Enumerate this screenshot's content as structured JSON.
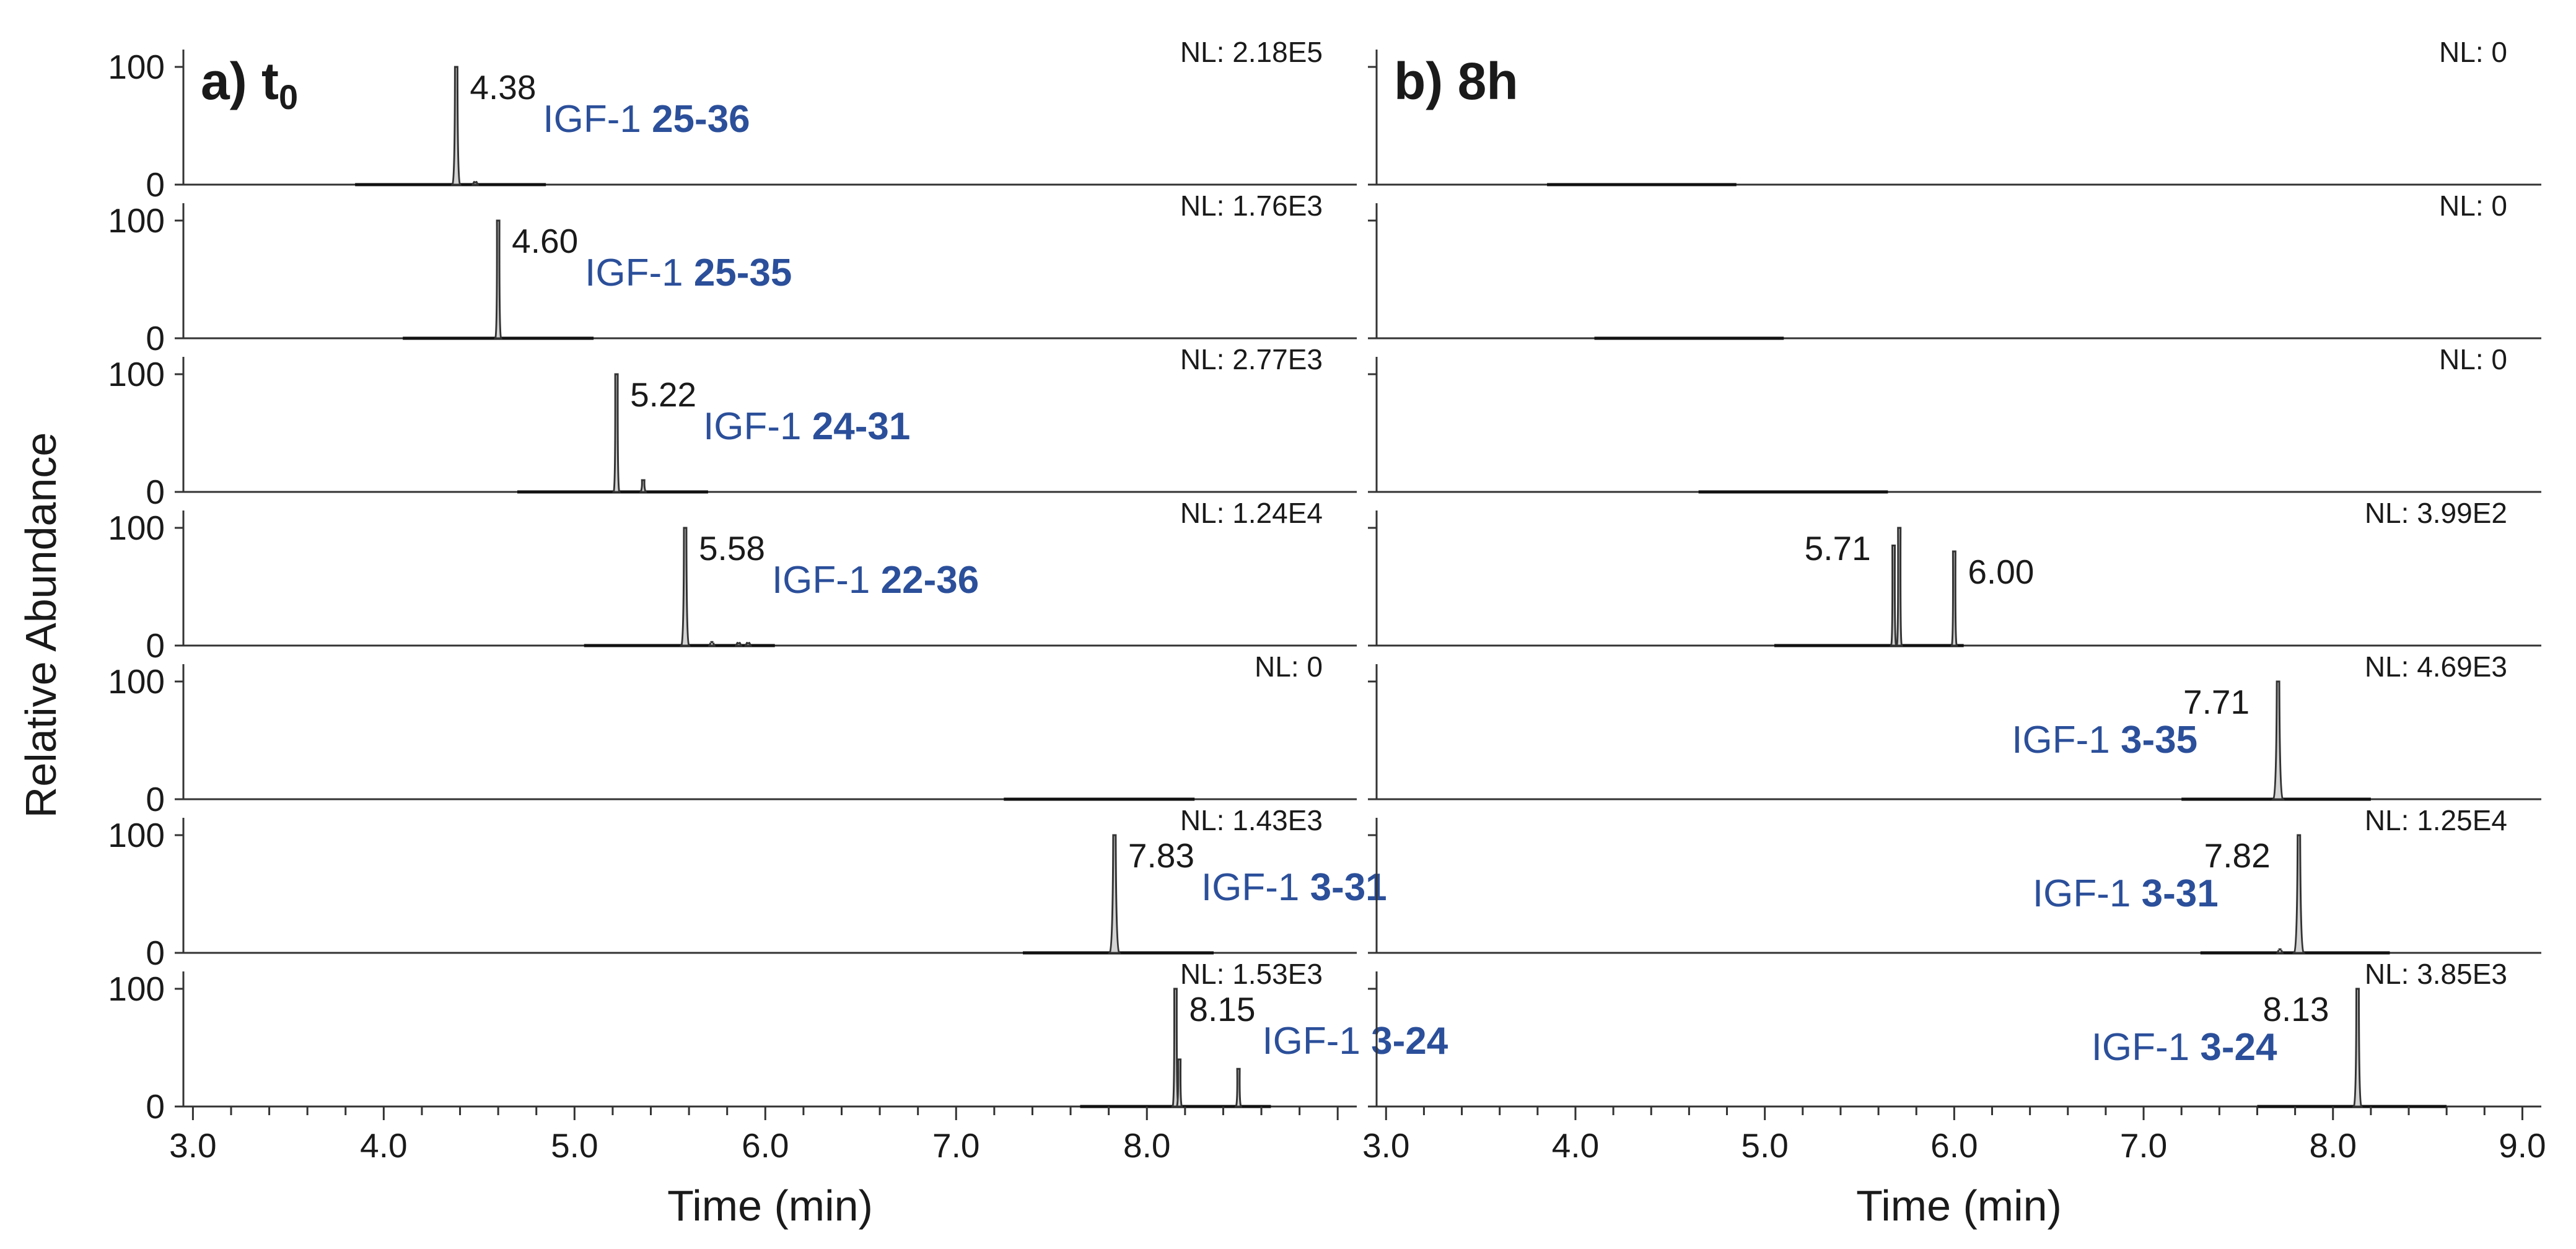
{
  "colors": {
    "text": "#1a1a1a",
    "label": "#2b4f9a",
    "axis": "#333333",
    "peak_fill": "#d4d4d4",
    "peak_stroke": "#333333"
  },
  "y_axis_label": "Relative Abundance",
  "chart_data": [
    {
      "type": "line",
      "panel_label": "a) t",
      "panel_label_subscript": "0",
      "xlabel": "Time (min)",
      "xlim": [
        2.95,
        9.1
      ],
      "x_ticks": [
        "3.0",
        "4.0",
        "5.0",
        "6.0",
        "7.0",
        "8.0"
      ],
      "ylim": [
        0,
        100
      ],
      "y_ticks": [
        "0",
        "100"
      ],
      "traces": [
        {
          "nl": "NL: 2.18E5",
          "window": [
            3.85,
            4.85
          ],
          "label_prefix": "IGF-1",
          "label_bold": "25-36",
          "peaks": [
            {
              "rt": 4.38,
              "height": 100,
              "label": "4.38",
              "width": 0.04
            },
            {
              "rt": 4.48,
              "height": 2,
              "width": 0.02
            }
          ]
        },
        {
          "nl": "NL: 1.76E3",
          "window": [
            4.1,
            5.1
          ],
          "label_prefix": "IGF-1",
          "label_bold": "25-35",
          "peaks": [
            {
              "rt": 4.6,
              "height": 100,
              "label": "4.60",
              "width": 0.03
            }
          ]
        },
        {
          "nl": "NL: 2.77E3",
          "window": [
            4.7,
            5.7
          ],
          "label_prefix": "IGF-1",
          "label_bold": "24-31",
          "peaks": [
            {
              "rt": 5.22,
              "height": 100,
              "label": "5.22",
              "width": 0.03
            },
            {
              "rt": 5.36,
              "height": 10,
              "width": 0.015
            }
          ]
        },
        {
          "nl": "NL: 1.24E4",
          "window": [
            5.05,
            6.05
          ],
          "label_prefix": "IGF-1",
          "label_bold": "22-36",
          "peaks": [
            {
              "rt": 5.58,
              "height": 100,
              "label": "5.58",
              "width": 0.04
            },
            {
              "rt": 5.72,
              "height": 3,
              "width": 0.015
            },
            {
              "rt": 5.86,
              "height": 2,
              "width": 0.015
            },
            {
              "rt": 5.91,
              "height": 2,
              "width": 0.015
            }
          ]
        },
        {
          "nl": "NL: 0",
          "window": [
            7.25,
            8.25
          ],
          "label_prefix": "",
          "label_bold": "",
          "peaks": []
        },
        {
          "nl": "NL: 1.43E3",
          "window": [
            7.35,
            8.35
          ],
          "label_prefix": "IGF-1",
          "label_bold": "3-31",
          "peaks": [
            {
              "rt": 7.83,
              "height": 100,
              "label": "7.83",
              "width": 0.05
            }
          ]
        },
        {
          "nl": "NL: 1.53E3",
          "window": [
            7.65,
            8.65
          ],
          "label_prefix": "IGF-1",
          "label_bold": "3-24",
          "peaks": [
            {
              "rt": 8.15,
              "height": 100,
              "label": "8.15",
              "width": 0.03
            },
            {
              "rt": 8.17,
              "height": 40,
              "width": 0.02
            },
            {
              "rt": 8.48,
              "height": 32,
              "width": 0.015
            }
          ]
        }
      ]
    },
    {
      "type": "line",
      "panel_label": "b) 8h",
      "panel_label_subscript": "",
      "xlabel": "Time (min)",
      "xlim": [
        2.95,
        9.1
      ],
      "x_ticks": [
        "3.0",
        "4.0",
        "5.0",
        "6.0",
        "7.0",
        "8.0",
        "9.0"
      ],
      "ylim": [
        0,
        100
      ],
      "y_ticks": [],
      "traces": [
        {
          "nl": "NL: 0",
          "window": [
            3.85,
            4.85
          ],
          "label_prefix": "",
          "label_bold": "",
          "peaks": []
        },
        {
          "nl": "NL: 0",
          "window": [
            4.1,
            5.1
          ],
          "label_prefix": "",
          "label_bold": "",
          "peaks": []
        },
        {
          "nl": "NL: 0",
          "window": [
            4.65,
            5.65
          ],
          "label_prefix": "",
          "label_bold": "",
          "peaks": []
        },
        {
          "nl": "NL: 3.99E2",
          "window": [
            5.05,
            6.05
          ],
          "label_prefix": "",
          "label_bold": "",
          "peaks": [
            {
              "rt": 5.68,
              "height": 85,
              "width": 0.012
            },
            {
              "rt": 5.71,
              "height": 100,
              "label": "5.71",
              "label_side": "left",
              "width": 0.012
            },
            {
              "rt": 6.0,
              "height": 80,
              "label": "6.00",
              "width": 0.012
            }
          ]
        },
        {
          "nl": "NL: 4.69E3",
          "window": [
            7.2,
            8.2
          ],
          "label_prefix": "IGF-1",
          "label_bold": "3-35",
          "peaks": [
            {
              "rt": 7.71,
              "height": 100,
              "label": "7.71",
              "label_side": "left",
              "width": 0.05
            }
          ]
        },
        {
          "nl": "NL: 1.25E4",
          "window": [
            7.3,
            8.3
          ],
          "label_prefix": "IGF-1",
          "label_bold": "3-31",
          "peaks": [
            {
              "rt": 7.82,
              "height": 100,
              "label": "7.82",
              "label_side": "left",
              "width": 0.05
            },
            {
              "rt": 7.72,
              "height": 3,
              "width": 0.02
            }
          ]
        },
        {
          "nl": "NL: 3.85E3",
          "window": [
            7.6,
            8.6
          ],
          "label_prefix": "IGF-1",
          "label_bold": "3-24",
          "peaks": [
            {
              "rt": 8.13,
              "height": 100,
              "label": "8.13",
              "label_side": "left",
              "width": 0.04
            }
          ]
        }
      ]
    }
  ]
}
